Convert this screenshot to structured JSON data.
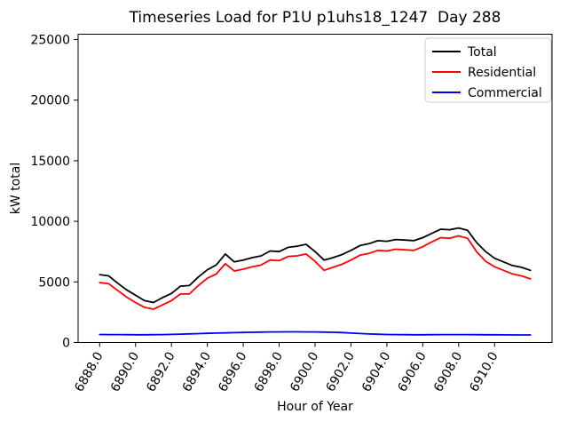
{
  "chart_data": {
    "type": "line",
    "title": "Timeseries Load for P1U p1uhs18_1247  Day 288",
    "xlabel": "Hour of Year",
    "ylabel": "kW total",
    "xlim": [
      6886.8,
      6913.2
    ],
    "ylim": [
      0,
      25440
    ],
    "grid": false,
    "legend_position": "upper right",
    "x_ticks": [
      6888,
      6890,
      6892,
      6894,
      6896,
      6898,
      6900,
      6902,
      6904,
      6906,
      6908,
      6910
    ],
    "x_tick_labels": [
      "6888.0",
      "6890.0",
      "6892.0",
      "6894.0",
      "6896.0",
      "6898.0",
      "6900.0",
      "6902.0",
      "6904.0",
      "6906.0",
      "6908.0",
      "6910.0"
    ],
    "y_ticks": [
      0,
      5000,
      10000,
      15000,
      20000,
      25000
    ],
    "y_tick_labels": [
      "0",
      "5000",
      "10000",
      "15000",
      "20000",
      "25000"
    ],
    "x": [
      6888.0,
      6888.5,
      6889.0,
      6889.5,
      6890.0,
      6890.5,
      6891.0,
      6891.5,
      6892.0,
      6892.5,
      6893.0,
      6893.5,
      6894.0,
      6894.5,
      6895.0,
      6895.5,
      6896.0,
      6896.5,
      6897.0,
      6897.5,
      6898.0,
      6898.5,
      6899.0,
      6899.5,
      6900.0,
      6900.5,
      6901.0,
      6901.5,
      6902.0,
      6902.5,
      6903.0,
      6903.5,
      6904.0,
      6904.5,
      6905.0,
      6905.5,
      6906.0,
      6906.5,
      6907.0,
      6907.5,
      6908.0,
      6908.5,
      6909.0,
      6909.5,
      6910.0,
      6910.5,
      6911.0,
      6911.5,
      6912.0
    ],
    "series": [
      {
        "name": "Total",
        "color": "#000000",
        "values": [
          5600,
          5500,
          4900,
          4350,
          3900,
          3450,
          3300,
          3700,
          4050,
          4650,
          4700,
          5400,
          6000,
          6400,
          7300,
          6650,
          6800,
          7000,
          7150,
          7550,
          7500,
          7850,
          7950,
          8100,
          7500,
          6800,
          7000,
          7250,
          7600,
          8000,
          8150,
          8400,
          8350,
          8500,
          8450,
          8400,
          8650,
          9000,
          9350,
          9300,
          9450,
          9250,
          8250,
          7500,
          6950,
          6650,
          6350,
          6200,
          5950
        ]
      },
      {
        "name": "Residential",
        "color": "#ff0000",
        "values": [
          4950,
          4850,
          4300,
          3750,
          3300,
          2900,
          2750,
          3100,
          3450,
          4000,
          4000,
          4700,
          5300,
          5650,
          6500,
          5900,
          6050,
          6250,
          6400,
          6800,
          6750,
          7100,
          7150,
          7300,
          6700,
          5950,
          6200,
          6450,
          6800,
          7200,
          7350,
          7600,
          7550,
          7700,
          7650,
          7600,
          7900,
          8300,
          8650,
          8600,
          8800,
          8600,
          7500,
          6700,
          6250,
          5950,
          5650,
          5500,
          5250
        ]
      },
      {
        "name": "Commercial",
        "color": "#0000ff",
        "values": [
          660,
          655,
          650,
          645,
          640,
          640,
          645,
          655,
          670,
          690,
          710,
          730,
          755,
          775,
          795,
          815,
          830,
          845,
          860,
          870,
          875,
          880,
          880,
          875,
          870,
          860,
          845,
          820,
          780,
          740,
          705,
          680,
          660,
          650,
          645,
          640,
          640,
          645,
          650,
          655,
          655,
          650,
          645,
          640,
          635,
          630,
          625,
          625,
          625
        ]
      }
    ]
  },
  "legend": {
    "items": [
      {
        "label": "Total",
        "color": "#000000"
      },
      {
        "label": "Residential",
        "color": "#ff0000"
      },
      {
        "label": "Commercial",
        "color": "#0000ff"
      }
    ]
  },
  "colors": {
    "background": "#ffffff",
    "axes_edge": "#000000",
    "legend_border": "#cccccc"
  }
}
